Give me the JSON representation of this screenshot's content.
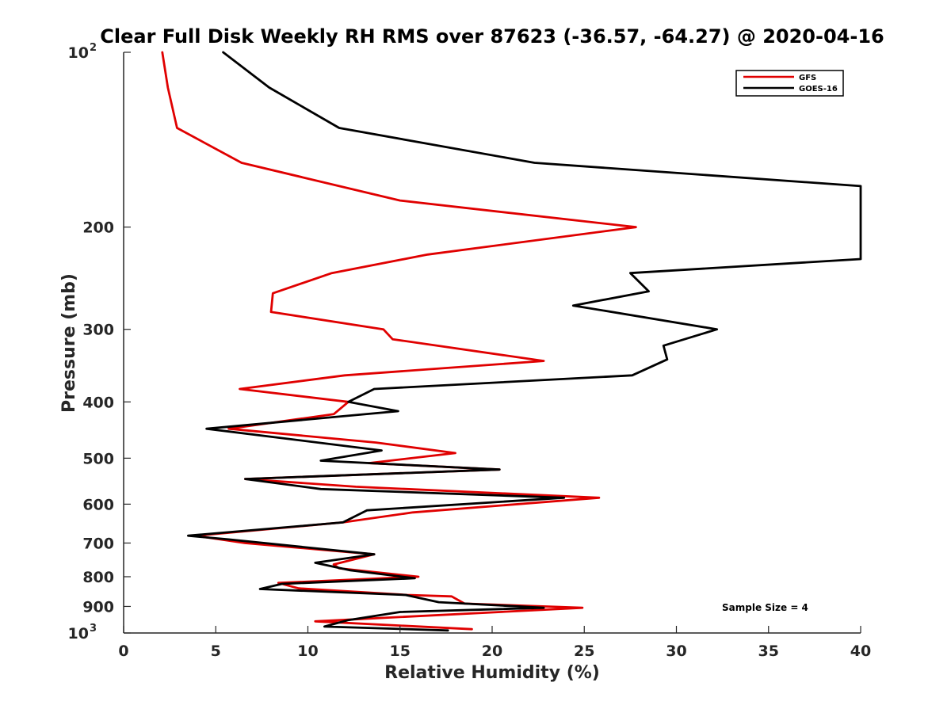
{
  "chart_data": {
    "type": "line",
    "title": "Clear Full Disk Weekly RH RMS over 87623 (-36.57, -64.27) @ 2020-04-16",
    "xlabel": "Relative Humidity (%)",
    "ylabel": "Pressure (mb)",
    "xlim": [
      0,
      40
    ],
    "ylim": [
      100,
      1000
    ],
    "y_scale": "log",
    "y_reversed": true,
    "grid": false,
    "legend_position": "top-right",
    "x_ticks": [
      0,
      5,
      10,
      15,
      20,
      25,
      30,
      35,
      40
    ],
    "y_ticks": [
      {
        "value": 100,
        "label": "10",
        "sup": "2"
      },
      {
        "value": 200,
        "label": "200"
      },
      {
        "value": 300,
        "label": "300"
      },
      {
        "value": 400,
        "label": "400"
      },
      {
        "value": 500,
        "label": "500"
      },
      {
        "value": 600,
        "label": "600"
      },
      {
        "value": 700,
        "label": "700"
      },
      {
        "value": 800,
        "label": "800"
      },
      {
        "value": 900,
        "label": "900"
      },
      {
        "value": 1000,
        "label": "10",
        "sup": "3"
      }
    ],
    "annotation": "Sample Size = 4",
    "series": [
      {
        "name": "GFS",
        "color": "#e00000",
        "points": [
          [
            2.1,
            100
          ],
          [
            2.4,
            115
          ],
          [
            2.9,
            135
          ],
          [
            6.4,
            155
          ],
          [
            15.0,
            180
          ],
          [
            27.8,
            200
          ],
          [
            16.5,
            223
          ],
          [
            11.3,
            240
          ],
          [
            8.1,
            260
          ],
          [
            8.0,
            280
          ],
          [
            14.1,
            300
          ],
          [
            14.6,
            312
          ],
          [
            22.8,
            340
          ],
          [
            12.0,
            360
          ],
          [
            6.3,
            380
          ],
          [
            12.2,
            400
          ],
          [
            11.4,
            420
          ],
          [
            5.7,
            445
          ],
          [
            13.7,
            470
          ],
          [
            18.0,
            490
          ],
          [
            13.3,
            510
          ],
          [
            20.4,
            523
          ],
          [
            6.6,
            543
          ],
          [
            12.6,
            560
          ],
          [
            25.8,
            585
          ],
          [
            15.7,
            620
          ],
          [
            11.9,
            645
          ],
          [
            3.9,
            680
          ],
          [
            6.6,
            700
          ],
          [
            13.6,
            732
          ],
          [
            11.4,
            762
          ],
          [
            11.7,
            774
          ],
          [
            16.0,
            800
          ],
          [
            8.4,
            820
          ],
          [
            9.5,
            838
          ],
          [
            15.4,
            860
          ],
          [
            17.8,
            865
          ],
          [
            18.5,
            890
          ],
          [
            24.9,
            905
          ],
          [
            10.4,
            955
          ],
          [
            18.9,
            985
          ]
        ]
      },
      {
        "name": "GOES-16",
        "color": "#000000",
        "points": [
          [
            5.4,
            100
          ],
          [
            7.9,
            115
          ],
          [
            11.7,
            135
          ],
          [
            22.3,
            155
          ],
          [
            40.0,
            170
          ],
          [
            40.0,
            227
          ],
          [
            27.5,
            240
          ],
          [
            28.5,
            258
          ],
          [
            24.4,
            273
          ],
          [
            32.2,
            300
          ],
          [
            29.3,
            320
          ],
          [
            29.5,
            338
          ],
          [
            27.6,
            360
          ],
          [
            13.6,
            380
          ],
          [
            12.2,
            400
          ],
          [
            14.9,
            415
          ],
          [
            4.5,
            445
          ],
          [
            14.0,
            485
          ],
          [
            10.7,
            505
          ],
          [
            20.4,
            523
          ],
          [
            6.6,
            543
          ],
          [
            10.7,
            565
          ],
          [
            23.9,
            585
          ],
          [
            13.2,
            615
          ],
          [
            11.9,
            645
          ],
          [
            3.5,
            680
          ],
          [
            5.7,
            690
          ],
          [
            13.6,
            732
          ],
          [
            10.4,
            757
          ],
          [
            12.3,
            780
          ],
          [
            15.8,
            805
          ],
          [
            8.6,
            823
          ],
          [
            7.4,
            840
          ],
          [
            15.3,
            860
          ],
          [
            17.1,
            885
          ],
          [
            22.8,
            905
          ],
          [
            15.0,
            920
          ],
          [
            12.2,
            950
          ],
          [
            10.9,
            975
          ],
          [
            17.6,
            990
          ]
        ]
      }
    ]
  }
}
